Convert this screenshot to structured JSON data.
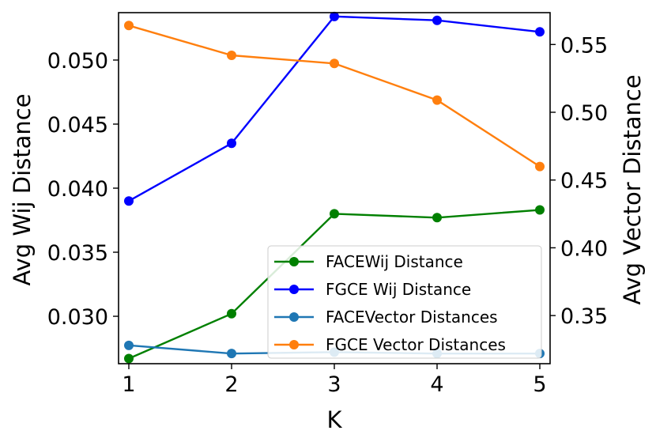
{
  "chart_data": {
    "type": "line",
    "xlabel": "K",
    "ylabel_left": "Avg Wij Distance",
    "ylabel_right": "Avg Vector Distance",
    "x": [
      1,
      2,
      3,
      4,
      5
    ],
    "x_ticks": [
      "1",
      "2",
      "3",
      "4",
      "5"
    ],
    "xlim": [
      0.9,
      5.1
    ],
    "ylim_left": [
      0.0263,
      0.0537
    ],
    "ylim_right": [
      0.3145,
      0.5735
    ],
    "left_ticks": [
      {
        "value": 0.03,
        "label": "0.030"
      },
      {
        "value": 0.035,
        "label": "0.035"
      },
      {
        "value": 0.04,
        "label": "0.040"
      },
      {
        "value": 0.045,
        "label": "0.045"
      },
      {
        "value": 0.05,
        "label": "0.050"
      }
    ],
    "right_ticks": [
      {
        "value": 0.35,
        "label": "0.35"
      },
      {
        "value": 0.4,
        "label": "0.40"
      },
      {
        "value": 0.45,
        "label": "0.45"
      },
      {
        "value": 0.5,
        "label": "0.50"
      },
      {
        "value": 0.55,
        "label": "0.55"
      }
    ],
    "legend_position": "lower-right",
    "series": [
      {
        "name": "FACEWij Distance",
        "axis": "left",
        "color": "#008000",
        "values": [
          0.0267,
          0.0302,
          0.038,
          0.0377,
          0.0383
        ]
      },
      {
        "name": "FGCE Wij Distance",
        "axis": "left",
        "color": "#0000ff",
        "values": [
          0.039,
          0.0435,
          0.0534,
          0.0531,
          0.0522
        ]
      },
      {
        "name": "FACEVector Distances",
        "axis": "right",
        "color": "#1f77b4",
        "values": [
          0.328,
          0.322,
          0.323,
          0.322,
          0.322
        ]
      },
      {
        "name": "FGCE Vector Distances",
        "axis": "right",
        "color": "#ff7f0e",
        "values": [
          0.564,
          0.542,
          0.536,
          0.509,
          0.46
        ]
      }
    ]
  }
}
